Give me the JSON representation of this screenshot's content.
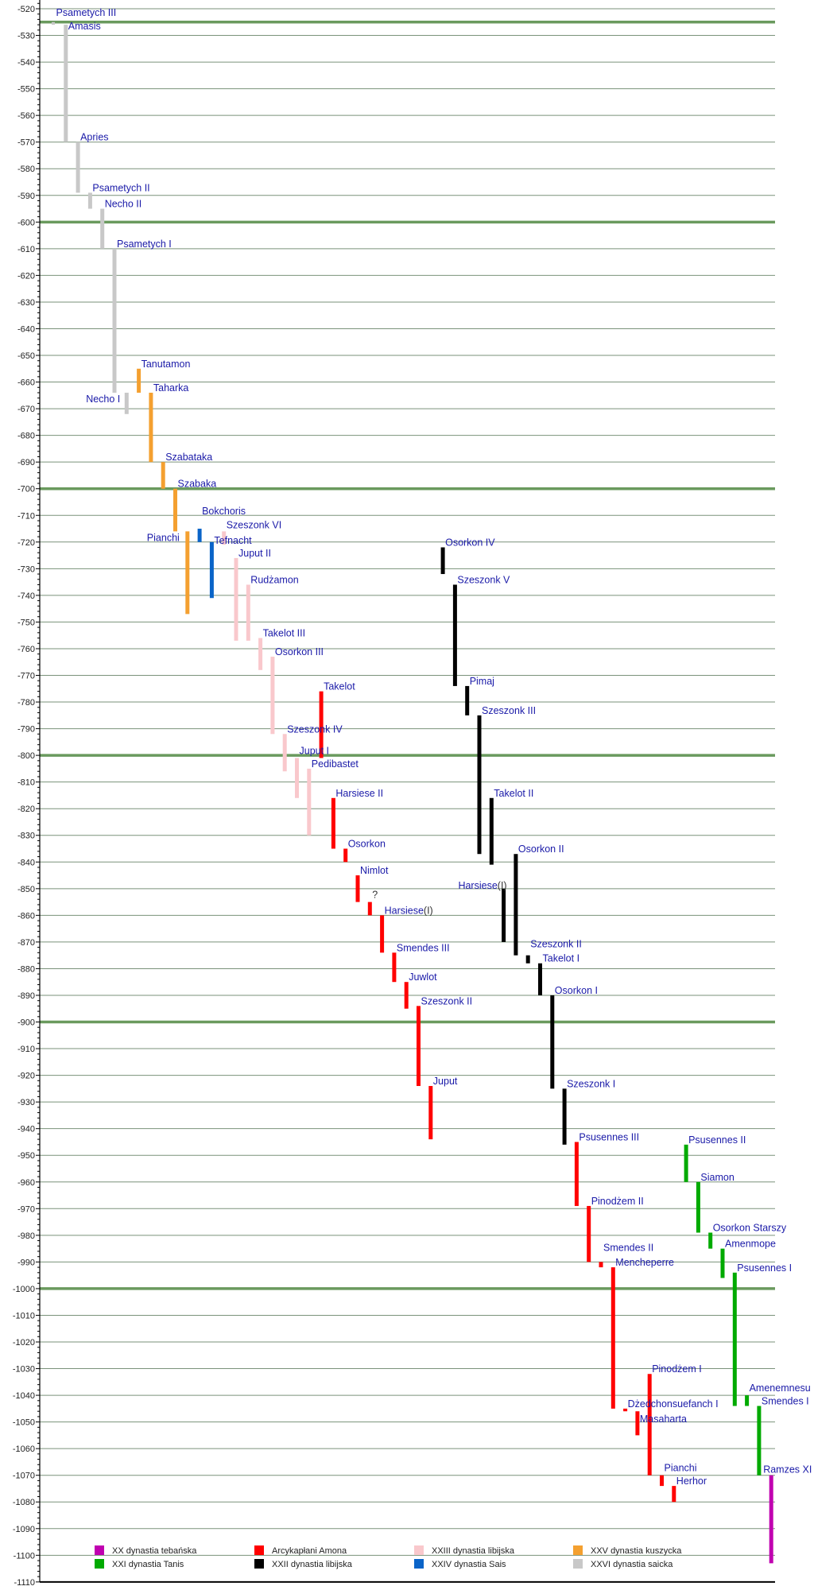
{
  "chart_data": {
    "type": "bar",
    "subtype": "floating-range-timeline",
    "title": "",
    "xlabel": "",
    "ylabel": "",
    "ylim": [
      -1110,
      -520
    ],
    "ytick_step": 10,
    "yticks": [
      "-520",
      "-530",
      "-540",
      "-550",
      "-560",
      "-570",
      "-580",
      "-590",
      "-600",
      "-610",
      "-620",
      "-630",
      "-640",
      "-650",
      "-660",
      "-670",
      "-680",
      "-690",
      "-700",
      "-710",
      "-720",
      "-730",
      "-740",
      "-750",
      "-760",
      "-770",
      "-780",
      "-790",
      "-800",
      "-810",
      "-820",
      "-830",
      "-840",
      "-850",
      "-860",
      "-870",
      "-880",
      "-890",
      "-900",
      "-910",
      "-920",
      "-930",
      "-940",
      "-950",
      "-960",
      "-970",
      "-980",
      "-990",
      "-1000",
      "-1010",
      "-1020",
      "-1030",
      "-1040",
      "-1050",
      "-1060",
      "-1070",
      "-1080",
      "-1090",
      "-1100",
      "-1110"
    ],
    "emphasized_gridlines": [
      -525,
      -600,
      -700,
      -800,
      -900,
      -1000
    ],
    "grid": true,
    "legend_position": "bottom",
    "dynasties": [
      {
        "key": "xx",
        "name": "XX dynastia tebańska",
        "color": "#c000b0"
      },
      {
        "key": "xxi",
        "name": "XXI dynastia Tanis",
        "color": "#00aa00"
      },
      {
        "key": "hp",
        "name": "Arcykapłani Amona",
        "color": "#ff0000"
      },
      {
        "key": "xxii",
        "name": "XXII dynastia libijska",
        "color": "#000000"
      },
      {
        "key": "xxiii",
        "name": "XXIII dynastia libijska",
        "color": "#f9c8cc"
      },
      {
        "key": "xxiv",
        "name": "XXIV dynastia Sais",
        "color": "#0a64c8"
      },
      {
        "key": "xxv",
        "name": "XXV dynastia kuszycka",
        "color": "#f4a030"
      },
      {
        "key": "xxvi",
        "name": "XXVI dynastia saicka",
        "color": "#c8c8c8"
      }
    ],
    "bars": [
      {
        "label": "Psametych III",
        "dynasty": "xxvi",
        "start": -526,
        "end": -525
      },
      {
        "label": "Amasis",
        "dynasty": "xxvi",
        "start": -570,
        "end": -526
      },
      {
        "label": "Apries",
        "dynasty": "xxvi",
        "start": -589,
        "end": -570
      },
      {
        "label": "Psametych II",
        "dynasty": "xxvi",
        "start": -595,
        "end": -589
      },
      {
        "label": "Necho II",
        "dynasty": "xxvi",
        "start": -610,
        "end": -595
      },
      {
        "label": "Psametych I",
        "dynasty": "xxvi",
        "start": -664,
        "end": -610
      },
      {
        "label": "Necho I",
        "dynasty": "xxvi",
        "start": -672,
        "end": -664
      },
      {
        "label": "Tanutamon",
        "dynasty": "xxv",
        "start": -664,
        "end": -655
      },
      {
        "label": "Taharka",
        "dynasty": "xxv",
        "start": -690,
        "end": -664
      },
      {
        "label": "Szabataka",
        "dynasty": "xxv",
        "start": -700,
        "end": -690
      },
      {
        "label": "Szabaka",
        "dynasty": "xxv",
        "start": -716,
        "end": -700
      },
      {
        "label": "Pianchi",
        "dynasty": "xxv",
        "start": -747,
        "end": -716
      },
      {
        "label": "Bokchoris",
        "dynasty": "xxiv",
        "start": -720,
        "end": -715
      },
      {
        "label": "Tefnacht",
        "dynasty": "xxiv",
        "start": -741,
        "end": -720
      },
      {
        "label": "Szeszonk VI",
        "dynasty": "xxiii",
        "start": -721,
        "end": -716
      },
      {
        "label": "Juput II",
        "dynasty": "xxiii",
        "start": -757,
        "end": -726
      },
      {
        "label": "Rudżamon",
        "dynasty": "xxiii",
        "start": -757,
        "end": -736
      },
      {
        "label": "Takelot III",
        "dynasty": "xxiii",
        "start": -768,
        "end": -756
      },
      {
        "label": "Osorkon III",
        "dynasty": "xxiii",
        "start": -792,
        "end": -763
      },
      {
        "label": "Szeszonk IV",
        "dynasty": "xxiii",
        "start": -806,
        "end": -792
      },
      {
        "label": "Juput I",
        "dynasty": "xxiii",
        "start": -816,
        "end": -801
      },
      {
        "label": "Pedibastet",
        "dynasty": "xxiii",
        "start": -830,
        "end": -805
      },
      {
        "label": "Takelot",
        "dynasty": "hp",
        "start": -801,
        "end": -776
      },
      {
        "label": "Harsiese II",
        "dynasty": "hp",
        "start": -835,
        "end": -816
      },
      {
        "label": "Osorkon",
        "dynasty": "hp",
        "start": -840,
        "end": -835
      },
      {
        "label": "Nimlot",
        "dynasty": "hp",
        "start": -855,
        "end": -845
      },
      {
        "label": "?",
        "dynasty": "hp",
        "start": -860,
        "end": -855
      },
      {
        "label": "Harsiese(I)",
        "dynasty": "hp",
        "start": -874,
        "end": -860
      },
      {
        "label": "Smendes III",
        "dynasty": "hp",
        "start": -885,
        "end": -874
      },
      {
        "label": "Juwlot",
        "dynasty": "hp",
        "start": -895,
        "end": -885
      },
      {
        "label": "Szeszonk II",
        "dynasty": "hp",
        "start": -924,
        "end": -894
      },
      {
        "label": "Juput",
        "dynasty": "hp",
        "start": -944,
        "end": -924
      },
      {
        "label": "Osorkon IV",
        "dynasty": "xxii",
        "start": -732,
        "end": -722
      },
      {
        "label": "Szeszonk V",
        "dynasty": "xxii",
        "start": -774,
        "end": -736
      },
      {
        "label": "Pimaj",
        "dynasty": "xxii",
        "start": -785,
        "end": -774
      },
      {
        "label": "Szeszonk III",
        "dynasty": "xxii",
        "start": -837,
        "end": -785
      },
      {
        "label": "Takelot II",
        "dynasty": "xxii",
        "start": -841,
        "end": -816
      },
      {
        "label": "Harsiese(I)",
        "dynasty": "xxii",
        "start": -870,
        "end": -850
      },
      {
        "label": "Osorkon II",
        "dynasty": "xxii",
        "start": -875,
        "end": -837
      },
      {
        "label": "Szeszonk II",
        "dynasty": "xxii",
        "start": -878,
        "end": -875
      },
      {
        "label": "Takelot I",
        "dynasty": "xxii",
        "start": -890,
        "end": -878
      },
      {
        "label": "Osorkon I",
        "dynasty": "xxii",
        "start": -925,
        "end": -890
      },
      {
        "label": "Szeszonk I",
        "dynasty": "xxii",
        "start": -946,
        "end": -925
      },
      {
        "label": "Psusennes III",
        "dynasty": "hp",
        "start": -969,
        "end": -945
      },
      {
        "label": "Pinodżem II",
        "dynasty": "hp",
        "start": -990,
        "end": -969
      },
      {
        "label": "Smendes II",
        "dynasty": "hp",
        "start": -992,
        "end": -990
      },
      {
        "label": "Mencheperre",
        "dynasty": "hp",
        "start": -1045,
        "end": -992
      },
      {
        "label": "Dżedchonsuefanch I",
        "dynasty": "hp",
        "start": -1046,
        "end": -1045
      },
      {
        "label": "Masaharta",
        "dynasty": "hp",
        "start": -1055,
        "end": -1046
      },
      {
        "label": "Pinodżem I",
        "dynasty": "hp",
        "start": -1070,
        "end": -1032
      },
      {
        "label": "Pianchi",
        "dynasty": "hp",
        "start": -1074,
        "end": -1070
      },
      {
        "label": "Herhor",
        "dynasty": "hp",
        "start": -1080,
        "end": -1074
      },
      {
        "label": "Psusennes II",
        "dynasty": "xxi",
        "start": -960,
        "end": -946
      },
      {
        "label": "Siamon",
        "dynasty": "xxi",
        "start": -979,
        "end": -960
      },
      {
        "label": "Osorkon Starszy",
        "dynasty": "xxi",
        "start": -985,
        "end": -979
      },
      {
        "label": "Amenmope",
        "dynasty": "xxi",
        "start": -996,
        "end": -985
      },
      {
        "label": "Psusennes I",
        "dynasty": "xxi",
        "start": -1044,
        "end": -994
      },
      {
        "label": "Amenemnesu",
        "dynasty": "xxi",
        "start": -1044,
        "end": -1040
      },
      {
        "label": "Smendes I",
        "dynasty": "xxi",
        "start": -1070,
        "end": -1044
      },
      {
        "label": "Ramzes XI",
        "dynasty": "xx",
        "start": -1103,
        "end": -1070
      }
    ]
  },
  "colors": {
    "gridline": "#7a927a",
    "gridline_emphasized": "#6a9a5e",
    "label_text": "#1a1aa8"
  }
}
